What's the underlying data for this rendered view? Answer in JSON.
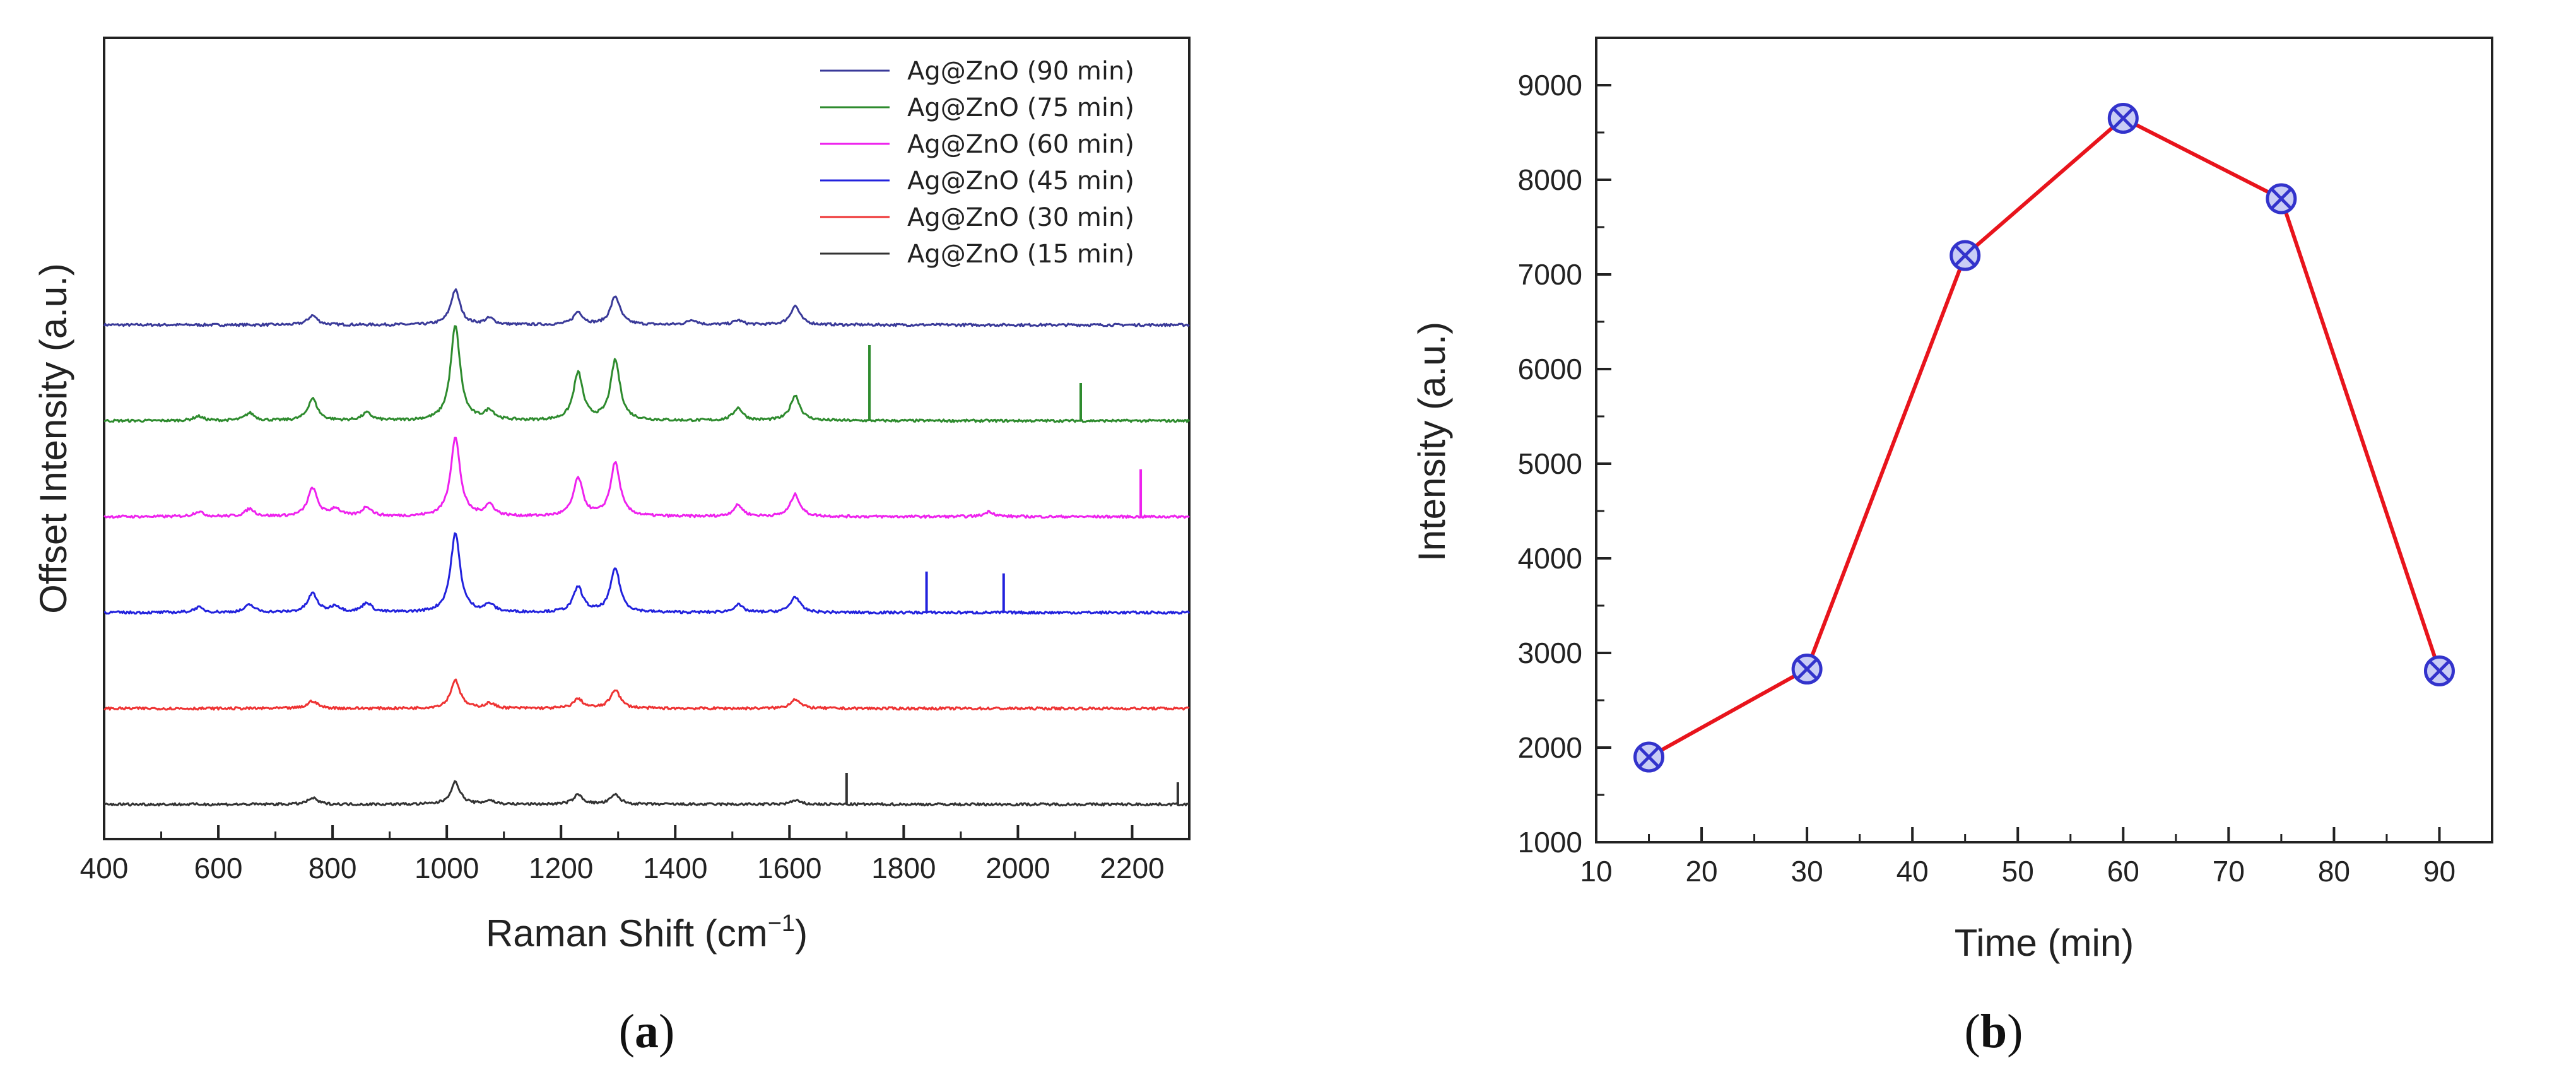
{
  "chart_data": [
    {
      "type": "line",
      "panel": "(a)",
      "panel_letter": "a",
      "xlabel": "Raman Shift (cm",
      "xlabel_sup": "−1",
      "xlabel_end": ")",
      "ylabel": "Offset Intensity (a.u.)",
      "xlim": [
        400,
        2300
      ],
      "xticks": [
        400,
        600,
        800,
        1000,
        1200,
        1400,
        1600,
        1800,
        2000,
        2200
      ],
      "yticks": [],
      "grid": false,
      "legend_position": "top-right",
      "baseline_peaks_cm-1": [
        565,
        655,
        765,
        805,
        860,
        1015,
        1075,
        1230,
        1295,
        1430,
        1510,
        1610
      ],
      "series": [
        {
          "name": "Ag@ZnO (90 min)",
          "color": "#3a3a99",
          "offset": 5,
          "peaks": [
            {
              "x": 765,
              "h": 0.15
            },
            {
              "x": 1015,
              "h": 0.55
            },
            {
              "x": 1075,
              "h": 0.1
            },
            {
              "x": 1230,
              "h": 0.2
            },
            {
              "x": 1295,
              "h": 0.45
            },
            {
              "x": 1430,
              "h": 0.08
            },
            {
              "x": 1510,
              "h": 0.07
            },
            {
              "x": 1610,
              "h": 0.3
            }
          ],
          "spikes": []
        },
        {
          "name": "Ag@ZnO (75 min)",
          "color": "#2e8b2e",
          "offset": 4,
          "peaks": [
            {
              "x": 565,
              "h": 0.07
            },
            {
              "x": 655,
              "h": 0.12
            },
            {
              "x": 765,
              "h": 0.35
            },
            {
              "x": 860,
              "h": 0.12
            },
            {
              "x": 1015,
              "h": 1.5
            },
            {
              "x": 1075,
              "h": 0.15
            },
            {
              "x": 1230,
              "h": 0.75
            },
            {
              "x": 1295,
              "h": 0.95
            },
            {
              "x": 1510,
              "h": 0.2
            },
            {
              "x": 1610,
              "h": 0.4
            }
          ],
          "spikes": [
            {
              "x": 1740,
              "h": 1.2
            },
            {
              "x": 2110,
              "h": 0.6
            }
          ]
        },
        {
          "name": "Ag@ZnO (60 min)",
          "color": "#ee22ee",
          "offset": 3,
          "peaks": [
            {
              "x": 565,
              "h": 0.08
            },
            {
              "x": 655,
              "h": 0.12
            },
            {
              "x": 765,
              "h": 0.45
            },
            {
              "x": 805,
              "h": 0.12
            },
            {
              "x": 860,
              "h": 0.15
            },
            {
              "x": 1015,
              "h": 1.25
            },
            {
              "x": 1075,
              "h": 0.18
            },
            {
              "x": 1230,
              "h": 0.6
            },
            {
              "x": 1295,
              "h": 0.85
            },
            {
              "x": 1510,
              "h": 0.18
            },
            {
              "x": 1610,
              "h": 0.35
            },
            {
              "x": 1950,
              "h": 0.08
            }
          ],
          "spikes": [
            {
              "x": 2215,
              "h": 0.75
            }
          ]
        },
        {
          "name": "Ag@ZnO (45 min)",
          "color": "#2222dd",
          "offset": 2,
          "peaks": [
            {
              "x": 565,
              "h": 0.08
            },
            {
              "x": 655,
              "h": 0.12
            },
            {
              "x": 765,
              "h": 0.3
            },
            {
              "x": 805,
              "h": 0.1
            },
            {
              "x": 860,
              "h": 0.15
            },
            {
              "x": 1015,
              "h": 1.25
            },
            {
              "x": 1075,
              "h": 0.12
            },
            {
              "x": 1230,
              "h": 0.4
            },
            {
              "x": 1295,
              "h": 0.7
            },
            {
              "x": 1510,
              "h": 0.12
            },
            {
              "x": 1610,
              "h": 0.25
            }
          ],
          "spikes": [
            {
              "x": 1840,
              "h": 0.65
            },
            {
              "x": 1975,
              "h": 0.62
            }
          ]
        },
        {
          "name": "Ag@ZnO (30 min)",
          "color": "#ee3333",
          "offset": 1,
          "peaks": [
            {
              "x": 765,
              "h": 0.12
            },
            {
              "x": 1015,
              "h": 0.45
            },
            {
              "x": 1075,
              "h": 0.08
            },
            {
              "x": 1230,
              "h": 0.15
            },
            {
              "x": 1295,
              "h": 0.3
            },
            {
              "x": 1610,
              "h": 0.15
            }
          ],
          "spikes": []
        },
        {
          "name": "Ag@ZnO (15 min)",
          "color": "#333333",
          "offset": 0,
          "peaks": [
            {
              "x": 765,
              "h": 0.1
            },
            {
              "x": 1015,
              "h": 0.35
            },
            {
              "x": 1075,
              "h": 0.06
            },
            {
              "x": 1230,
              "h": 0.15
            },
            {
              "x": 1295,
              "h": 0.15
            },
            {
              "x": 1610,
              "h": 0.06
            }
          ],
          "spikes": [
            {
              "x": 1700,
              "h": 0.5
            },
            {
              "x": 2280,
              "h": 0.35
            }
          ]
        }
      ]
    },
    {
      "type": "line",
      "panel": "(b)",
      "panel_letter": "b",
      "xlabel": "Time (min)",
      "ylabel": "Intensity (a.u.)",
      "xlim": [
        10,
        95
      ],
      "ylim": [
        1000,
        9500
      ],
      "xticks": [
        10,
        20,
        30,
        40,
        50,
        60,
        70,
        80,
        90
      ],
      "yticks": [
        1000,
        2000,
        3000,
        4000,
        5000,
        6000,
        7000,
        8000,
        9000
      ],
      "grid": false,
      "line_color": "#e8141c",
      "marker_color": "#3333cc",
      "marker": "circle-x",
      "series": [
        {
          "name": "Intensity",
          "x": [
            15,
            30,
            45,
            60,
            75,
            90
          ],
          "y": [
            1900,
            2830,
            7200,
            8650,
            7800,
            2810
          ]
        }
      ]
    }
  ]
}
